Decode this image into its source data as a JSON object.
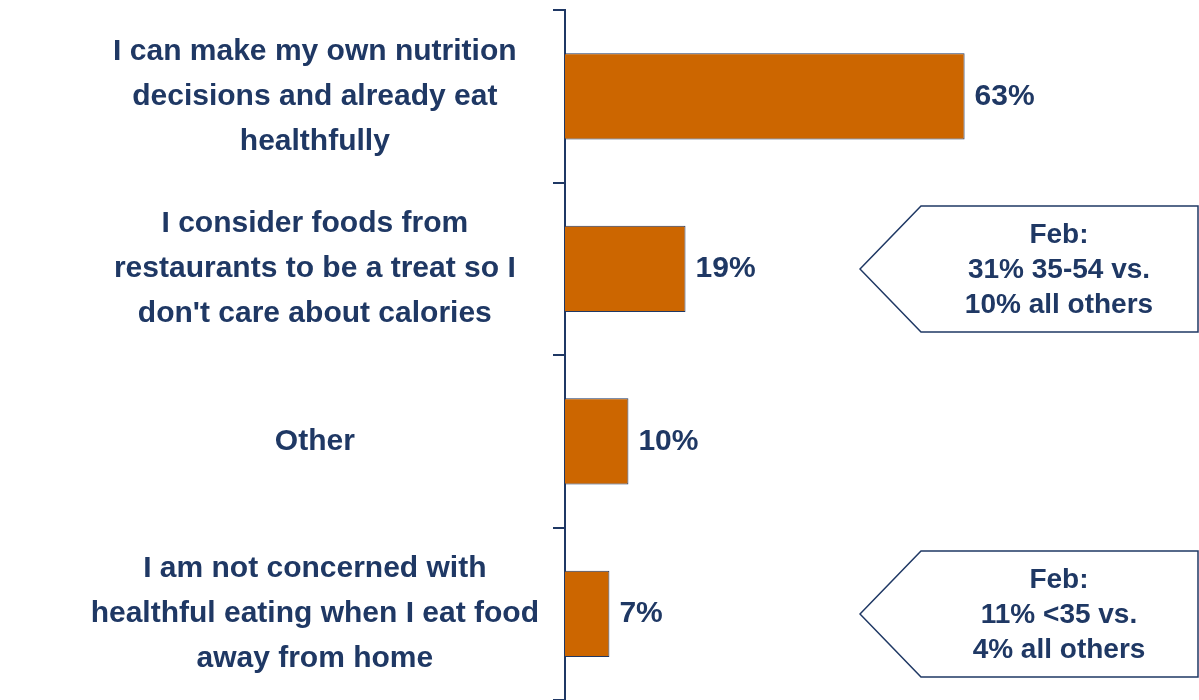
{
  "chart_data": {
    "type": "bar",
    "orientation": "horizontal",
    "categories": [
      "I can make my own nutrition decisions and already eat healthfully",
      "I consider foods from restaurants to be a treat so I don't care about calories",
      "Other",
      "I am not concerned with healthful eating when I eat food away from home"
    ],
    "values": [
      63,
      19,
      10,
      7
    ],
    "value_labels": [
      "63%",
      "19%",
      "10%",
      "7%"
    ],
    "color": "#cc6600",
    "grid": false,
    "legend": false,
    "tick_labels": "y",
    "annotations": [
      "Feb:\n31% 35-54 vs.\n10% all others",
      "Feb:\n11% <35 vs.\n4% all others"
    ]
  }
}
